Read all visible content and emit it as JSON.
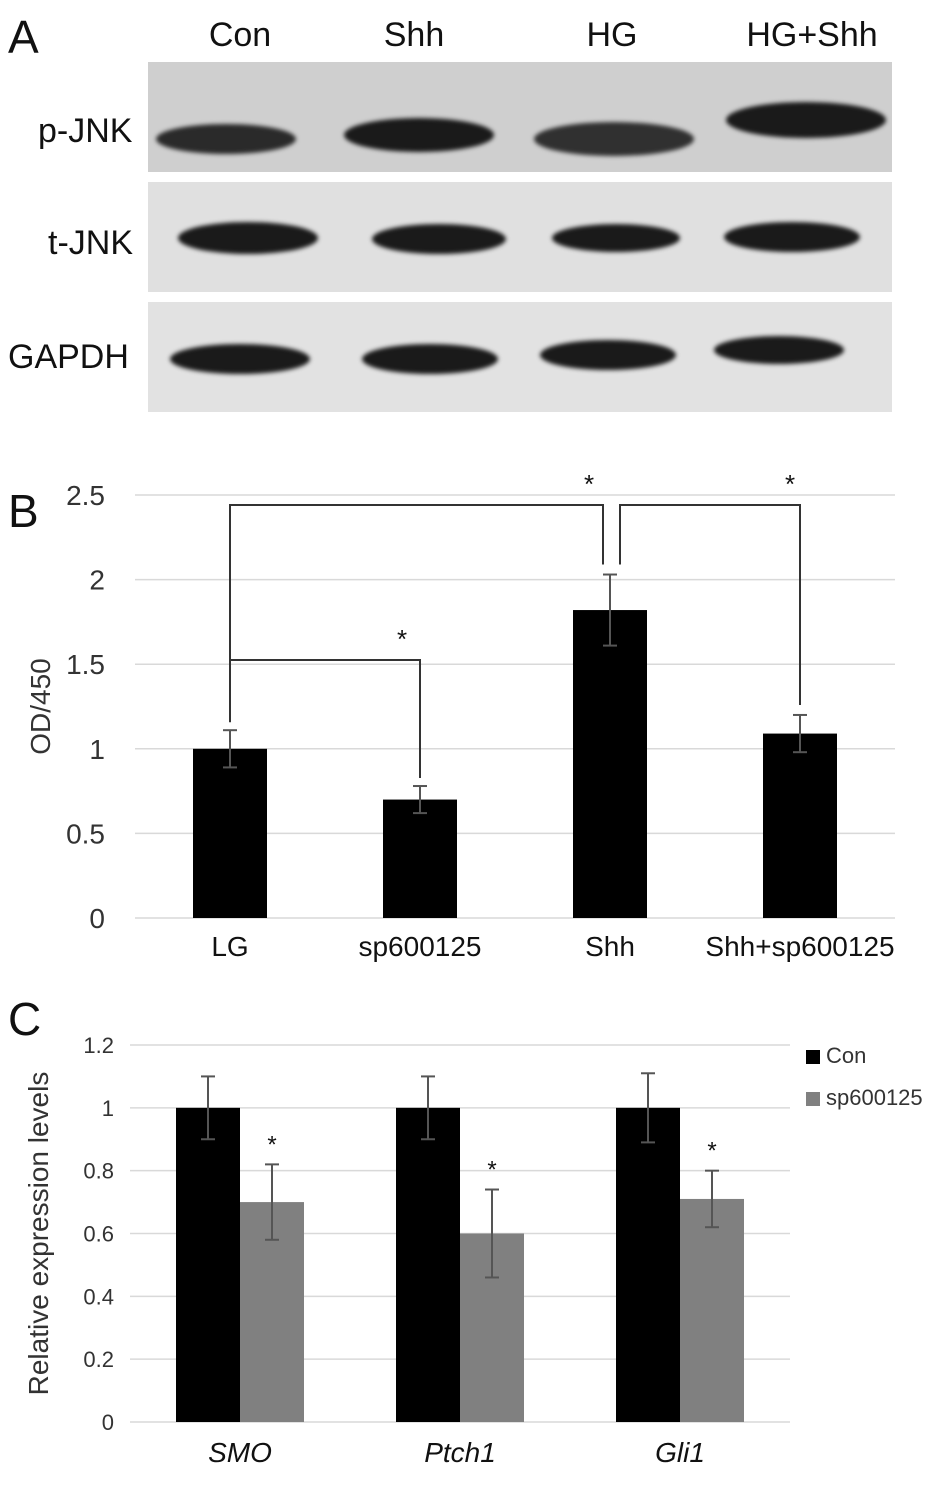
{
  "panels": [
    "A",
    "B",
    "C"
  ],
  "western_blot": {
    "lanes": [
      "Con",
      "Shh",
      "HG",
      "HG+Shh"
    ],
    "rows": [
      "p-JNK",
      "t-JNK",
      "GAPDH"
    ]
  },
  "chart_data": [
    {
      "type": "bar",
      "panel": "B",
      "categories": [
        "LG",
        "sp600125",
        "Shh",
        "Shh+sp600125"
      ],
      "values": [
        1.0,
        0.7,
        1.82,
        1.09
      ],
      "errors": [
        0.11,
        0.08,
        0.21,
        0.11
      ],
      "ylabel": "OD/450",
      "ylim": [
        0,
        2.5
      ],
      "yticks": [
        "0",
        "0.5",
        "1",
        "1.5",
        "2",
        "2.5"
      ],
      "grid": true,
      "significance": [
        {
          "from": "LG",
          "to": "sp600125",
          "label": "*"
        },
        {
          "from": "LG",
          "to": "Shh",
          "label": "*"
        },
        {
          "from": "Shh",
          "to": "Shh+sp600125",
          "label": "*"
        }
      ]
    },
    {
      "type": "bar",
      "panel": "C",
      "categories": [
        "SMO",
        "Ptch1",
        "Gli1"
      ],
      "series": [
        {
          "name": "Con",
          "values": [
            1.0,
            1.0,
            1.0
          ],
          "errors": [
            0.1,
            0.1,
            0.11
          ],
          "color": "#000000"
        },
        {
          "name": "sp600125",
          "values": [
            0.7,
            0.6,
            0.71
          ],
          "errors": [
            0.12,
            0.14,
            0.09
          ],
          "color": "#808080"
        }
      ],
      "annotations": [
        "*",
        "*",
        "*"
      ],
      "ylabel": "Relative expression levels",
      "ylim": [
        0,
        1.2
      ],
      "yticks": [
        "0",
        "0.2",
        "0.4",
        "0.6",
        "0.8",
        "1",
        "1.2"
      ],
      "grid": true,
      "legend": "top-right"
    }
  ]
}
